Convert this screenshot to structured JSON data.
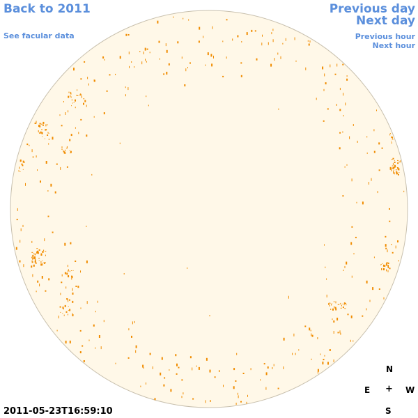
{
  "nav": {
    "back": "Back to 2011",
    "facular": "See facular data",
    "prev_day": "Previous day",
    "next_day": "Next day",
    "prev_hour": "Previous hour",
    "next_hour": "Next hour"
  },
  "timestamp": "2011-05-23T16:59:10",
  "compass": {
    "north": "N",
    "east": "E",
    "center": "+",
    "west": "W",
    "south": "S"
  },
  "colors": {
    "disk": "#fff8e8",
    "limb": "#c8c0ae",
    "plage": "#f08c00",
    "link": "#5b8fdc"
  }
}
